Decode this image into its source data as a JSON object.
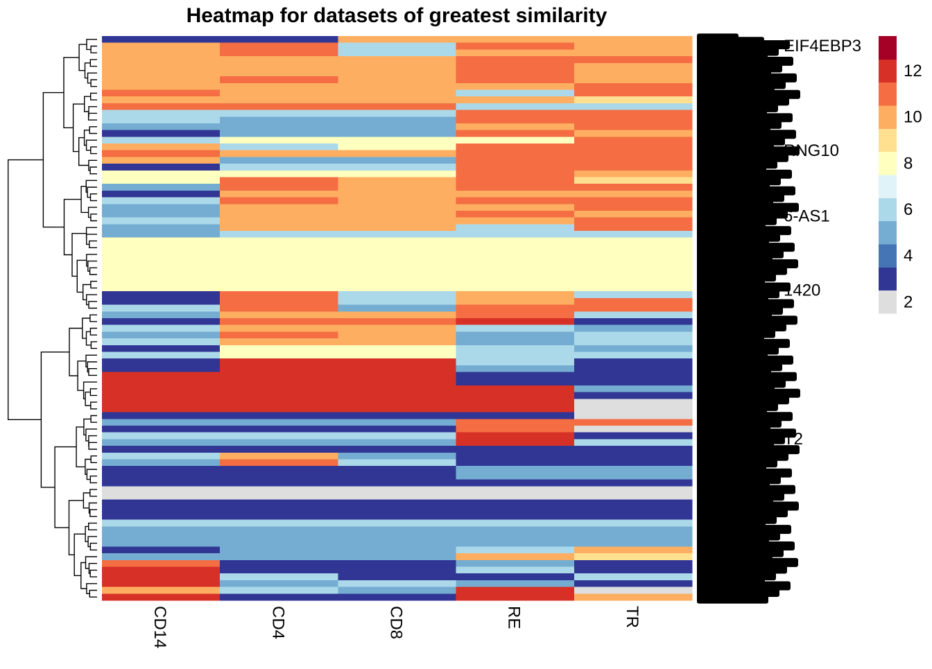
{
  "chart_data": {
    "type": "heatmap",
    "title": "Heatmap for datasets of greatest similarity",
    "columns": [
      "CD14",
      "CD4",
      "CD8",
      "RE",
      "TR"
    ],
    "legend": {
      "ticks": [
        2,
        4,
        6,
        8,
        10,
        12
      ],
      "range": [
        1,
        13
      ],
      "bins": [
        {
          "from": 1,
          "to": 2,
          "color": "#DEDEDE"
        },
        {
          "from": 2,
          "to": 3,
          "color": "#313695"
        },
        {
          "from": 3,
          "to": 4,
          "color": "#4575B4"
        },
        {
          "from": 4,
          "to": 5,
          "color": "#74ADD1"
        },
        {
          "from": 5,
          "to": 6,
          "color": "#ABD9E9"
        },
        {
          "from": 6,
          "to": 7,
          "color": "#E0F3F8"
        },
        {
          "from": 7,
          "to": 8,
          "color": "#FFFFBF"
        },
        {
          "from": 8,
          "to": 9,
          "color": "#FEE090"
        },
        {
          "from": 9,
          "to": 10,
          "color": "#FDAE61"
        },
        {
          "from": 10,
          "to": 11,
          "color": "#F46D43"
        },
        {
          "from": 11,
          "to": 12,
          "color": "#D73027"
        },
        {
          "from": 12,
          "to": 13,
          "color": "#A50026"
        }
      ],
      "placement": "right"
    },
    "row_labels_visible": [
      "EIF4EBP3",
      "RNG10",
      "6-AS1",
      "1420",
      "T2"
    ],
    "rows": [
      [
        2.5,
        2.5,
        9.5,
        9.5,
        9.5
      ],
      [
        9.5,
        10.5,
        5.5,
        10.5,
        9.5
      ],
      [
        9.5,
        10.5,
        5.5,
        9.5,
        9.5
      ],
      [
        9.5,
        9.5,
        9.5,
        10.5,
        10.5
      ],
      [
        9.5,
        9.5,
        9.5,
        10.5,
        9.5
      ],
      [
        9.5,
        9.5,
        9.5,
        10.5,
        9.5
      ],
      [
        9.5,
        10.5,
        9.5,
        10.5,
        9.5
      ],
      [
        9.5,
        9.5,
        9.5,
        9.5,
        10.5
      ],
      [
        10.5,
        9.5,
        9.5,
        5.5,
        10.5
      ],
      [
        9.5,
        9.5,
        9.5,
        9.5,
        8.5
      ],
      [
        10.5,
        10.5,
        10.5,
        5.5,
        5.5
      ],
      [
        5.5,
        5.5,
        5.5,
        10.5,
        10.5
      ],
      [
        5.5,
        4.5,
        4.5,
        10.5,
        10.5
      ],
      [
        4.5,
        4.5,
        4.5,
        9.5,
        10.5
      ],
      [
        2.5,
        4.5,
        4.5,
        10.5,
        9.5
      ],
      [
        5.5,
        7.5,
        7.5,
        7.5,
        10.5
      ],
      [
        9.5,
        5.5,
        7.5,
        10.5,
        10.5
      ],
      [
        10.5,
        9.5,
        9.5,
        10.5,
        10.5
      ],
      [
        9.5,
        4.5,
        4.5,
        10.5,
        10.5
      ],
      [
        2.5,
        5.5,
        5.5,
        10.5,
        10.5
      ],
      [
        7.5,
        7.5,
        7.5,
        10.5,
        9.5
      ],
      [
        7.5,
        10.5,
        9.5,
        10.5,
        8.5
      ],
      [
        4.5,
        10.5,
        9.5,
        10.5,
        10.5
      ],
      [
        2.5,
        9.5,
        9.5,
        9.5,
        9.5
      ],
      [
        5.5,
        10.5,
        9.5,
        10.5,
        10.5
      ],
      [
        4.5,
        9.5,
        9.5,
        9.5,
        10.5
      ],
      [
        4.5,
        9.5,
        9.5,
        10.5,
        9.5
      ],
      [
        5.5,
        9.5,
        9.5,
        9.5,
        10.5
      ],
      [
        4.5,
        9.5,
        9.5,
        5.5,
        10.5
      ],
      [
        4.5,
        5.5,
        5.5,
        5.5,
        5.5
      ],
      [
        7.5,
        7.5,
        7.5,
        7.5,
        7.5
      ],
      [
        7.5,
        7.5,
        7.5,
        7.5,
        7.5
      ],
      [
        7.5,
        7.5,
        7.5,
        7.5,
        7.5
      ],
      [
        7.5,
        7.5,
        7.5,
        7.5,
        7.5
      ],
      [
        7.5,
        7.5,
        7.5,
        7.5,
        7.5
      ],
      [
        7.5,
        7.5,
        7.5,
        7.5,
        7.5
      ],
      [
        7.5,
        7.5,
        7.5,
        7.5,
        7.5
      ],
      [
        7.5,
        7.5,
        7.5,
        7.5,
        7.5
      ],
      [
        2.5,
        10.5,
        5.5,
        9.5,
        5.5
      ],
      [
        2.5,
        10.5,
        5.5,
        9.5,
        10.5
      ],
      [
        5.5,
        10.5,
        4.5,
        10.5,
        10.5
      ],
      [
        4.5,
        9.5,
        9.5,
        10.5,
        5.5
      ],
      [
        2.5,
        10.5,
        10.5,
        11.5,
        2.5
      ],
      [
        5.5,
        9.5,
        9.5,
        5.5,
        4.5
      ],
      [
        4.5,
        10.5,
        9.5,
        4.5,
        5.5
      ],
      [
        5.5,
        9.5,
        9.5,
        4.5,
        5.5
      ],
      [
        2.5,
        7.5,
        7.5,
        5.5,
        4.5
      ],
      [
        5.5,
        7.5,
        7.5,
        5.5,
        5.5
      ],
      [
        2.5,
        11.5,
        11.5,
        5.5,
        2.5
      ],
      [
        2.5,
        11.5,
        11.5,
        4.5,
        2.5
      ],
      [
        11.5,
        11.5,
        11.5,
        2.5,
        2.5
      ],
      [
        11.5,
        11.5,
        11.5,
        2.5,
        2.5
      ],
      [
        11.5,
        11.5,
        11.5,
        11.5,
        4.5
      ],
      [
        11.5,
        11.5,
        11.5,
        11.5,
        2.5
      ],
      [
        11.5,
        11.5,
        11.5,
        11.5,
        1.5
      ],
      [
        11.5,
        11.5,
        11.5,
        11.5,
        1.5
      ],
      [
        2.5,
        2.5,
        2.5,
        2.5,
        1.5
      ],
      [
        4.5,
        4.5,
        4.5,
        10.5,
        10.5
      ],
      [
        2.5,
        2.5,
        2.5,
        10.5,
        1.5
      ],
      [
        5.5,
        5.5,
        5.5,
        11.5,
        2.5
      ],
      [
        4.5,
        4.5,
        4.5,
        11.5,
        5.5
      ],
      [
        2.5,
        2.5,
        2.5,
        2.5,
        2.5
      ],
      [
        5.5,
        9.5,
        4.5,
        2.5,
        2.5
      ],
      [
        4.5,
        10.5,
        5.5,
        2.5,
        2.5
      ],
      [
        2.5,
        2.5,
        2.5,
        4.5,
        4.5
      ],
      [
        2.5,
        2.5,
        2.5,
        4.5,
        4.5
      ],
      [
        2.5,
        2.5,
        2.5,
        2.5,
        2.5
      ],
      [
        1.5,
        1.5,
        1.5,
        1.5,
        1.5
      ],
      [
        1.5,
        1.5,
        1.5,
        1.5,
        1.5
      ],
      [
        2.5,
        2.5,
        2.5,
        2.5,
        2.5
      ],
      [
        2.5,
        2.5,
        2.5,
        2.5,
        2.5
      ],
      [
        2.5,
        2.5,
        2.5,
        2.5,
        2.5
      ],
      [
        5.5,
        5.5,
        5.5,
        5.5,
        5.5
      ],
      [
        4.5,
        4.5,
        4.5,
        4.5,
        4.5
      ],
      [
        4.5,
        4.5,
        4.5,
        4.5,
        4.5
      ],
      [
        4.5,
        4.5,
        4.5,
        4.5,
        4.5
      ],
      [
        2.5,
        4.5,
        4.5,
        5.5,
        9.5
      ],
      [
        4.5,
        4.5,
        4.5,
        9.5,
        8.5
      ],
      [
        10.5,
        2.5,
        2.5,
        4.5,
        2.5
      ],
      [
        11.5,
        2.5,
        2.5,
        5.5,
        2.5
      ],
      [
        11.5,
        5.5,
        2.5,
        2.5,
        5.5
      ],
      [
        11.5,
        4.5,
        5.5,
        4.5,
        2.5
      ],
      [
        9.5,
        5.5,
        4.5,
        11.5,
        1.5
      ],
      [
        11.5,
        2.5,
        2.5,
        11.5,
        9.5
      ]
    ]
  }
}
